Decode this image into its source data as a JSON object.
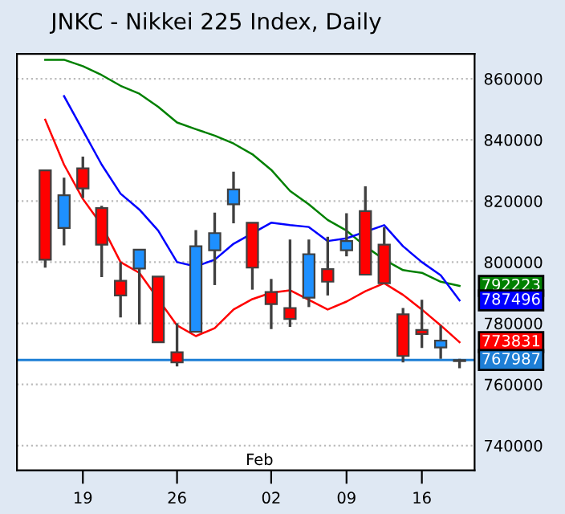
{
  "chart_data": {
    "type": "candlestick",
    "title": "JNKC - Nikkei 225 Index, Daily",
    "categories": [
      null,
      null,
      "19",
      null,
      null,
      null,
      null,
      "26",
      null,
      null,
      null,
      null,
      "02",
      null,
      null,
      null,
      "09",
      null,
      null,
      null,
      "16",
      null,
      null
    ],
    "ohlc": [
      [
        830000,
        830000,
        798200,
        800800
      ],
      [
        811200,
        827600,
        805500,
        821900
      ],
      [
        830700,
        834500,
        821000,
        824100
      ],
      [
        817700,
        818400,
        795100,
        805700
      ],
      [
        793900,
        800000,
        781900,
        789100
      ],
      [
        797900,
        804100,
        779600,
        804100
      ],
      [
        795300,
        795300,
        773800,
        773800
      ],
      [
        770500,
        780000,
        765900,
        767200
      ],
      [
        777200,
        810500,
        777200,
        805200
      ],
      [
        803900,
        816200,
        792500,
        809500
      ],
      [
        818900,
        829600,
        812700,
        823800
      ],
      [
        812900,
        812900,
        791000,
        798200
      ],
      [
        790200,
        794500,
        778100,
        786300
      ],
      [
        785000,
        807400,
        778800,
        781400
      ],
      [
        788400,
        807400,
        785300,
        802600
      ],
      [
        797700,
        808300,
        789100,
        793600
      ],
      [
        803900,
        816000,
        801900,
        806900
      ],
      [
        816700,
        824800,
        795900,
        795900
      ],
      [
        805700,
        811400,
        793100,
        793100
      ],
      [
        782900,
        785000,
        767200,
        769300
      ],
      [
        777800,
        787700,
        771900,
        776500
      ],
      [
        772100,
        779300,
        768400,
        774300
      ],
      [
        767600,
        768400,
        765300,
        767987
      ]
    ],
    "colors": [
      "#ff0000",
      "#1e90ff",
      "#ff0000",
      "#ff0000",
      "#ff0000",
      "#1e90ff",
      "#ff0000",
      "#ff0000",
      "#1e90ff",
      "#1e90ff",
      "#1e90ff",
      "#ff0000",
      "#ff0000",
      "#ff0000",
      "#1e90ff",
      "#ff0000",
      "#1e90ff",
      "#ff0000",
      "#ff0000",
      "#ff0000",
      "#ff0000",
      "#1e90ff",
      "#ff0000"
    ],
    "series": [
      {
        "type": "line",
        "color": "#008000",
        "values": [
          866200,
          866200,
          864100,
          861200,
          857700,
          855100,
          850800,
          845700,
          843500,
          841400,
          838800,
          835300,
          830200,
          823300,
          818900,
          813800,
          810300,
          805200,
          800800,
          797400,
          796500,
          793600,
          792223
        ],
        "value_labels": [
          null,
          null,
          null,
          null,
          null,
          null,
          null,
          null,
          null,
          null,
          null,
          null,
          null,
          null,
          null,
          null,
          null,
          null,
          null,
          null,
          null,
          null,
          "792223"
        ]
      },
      {
        "type": "line",
        "color": "#0000ff",
        "values": [
          null,
          854300,
          843100,
          831900,
          822400,
          817200,
          810300,
          800000,
          798600,
          800800,
          806000,
          null,
          812900,
          812100,
          811500,
          806900,
          807800,
          null,
          812100,
          805200,
          800000,
          795700,
          787496
        ],
        "value_labels": [
          null,
          null,
          null,
          null,
          null,
          null,
          null,
          null,
          null,
          null,
          null,
          null,
          null,
          null,
          null,
          null,
          null,
          null,
          null,
          null,
          null,
          null,
          "787496"
        ]
      },
      {
        "type": "line",
        "color": "#ff0000",
        "values": [
          846600,
          831900,
          820700,
          812100,
          800000,
          796500,
          787900,
          779300,
          775800,
          778400,
          784500,
          787900,
          790000,
          790800,
          null,
          784500,
          787100,
          790500,
          793100,
          789300,
          784500,
          779300,
          773831
        ],
        "value_labels": [
          null,
          null,
          null,
          null,
          null,
          null,
          null,
          null,
          null,
          null,
          null,
          null,
          null,
          null,
          null,
          null,
          null,
          null,
          null,
          null,
          null,
          null,
          "773831"
        ]
      }
    ],
    "ref_lines": [
      {
        "axis": "y",
        "value": 767987,
        "label": "767987",
        "color": "#1e7fd6"
      }
    ],
    "annotations": [
      "Feb"
    ],
    "ylim": [
      731900,
      868100
    ],
    "yticks": [
      740000,
      760000,
      780000,
      800000,
      820000,
      840000,
      860000
    ],
    "grid": "y"
  }
}
